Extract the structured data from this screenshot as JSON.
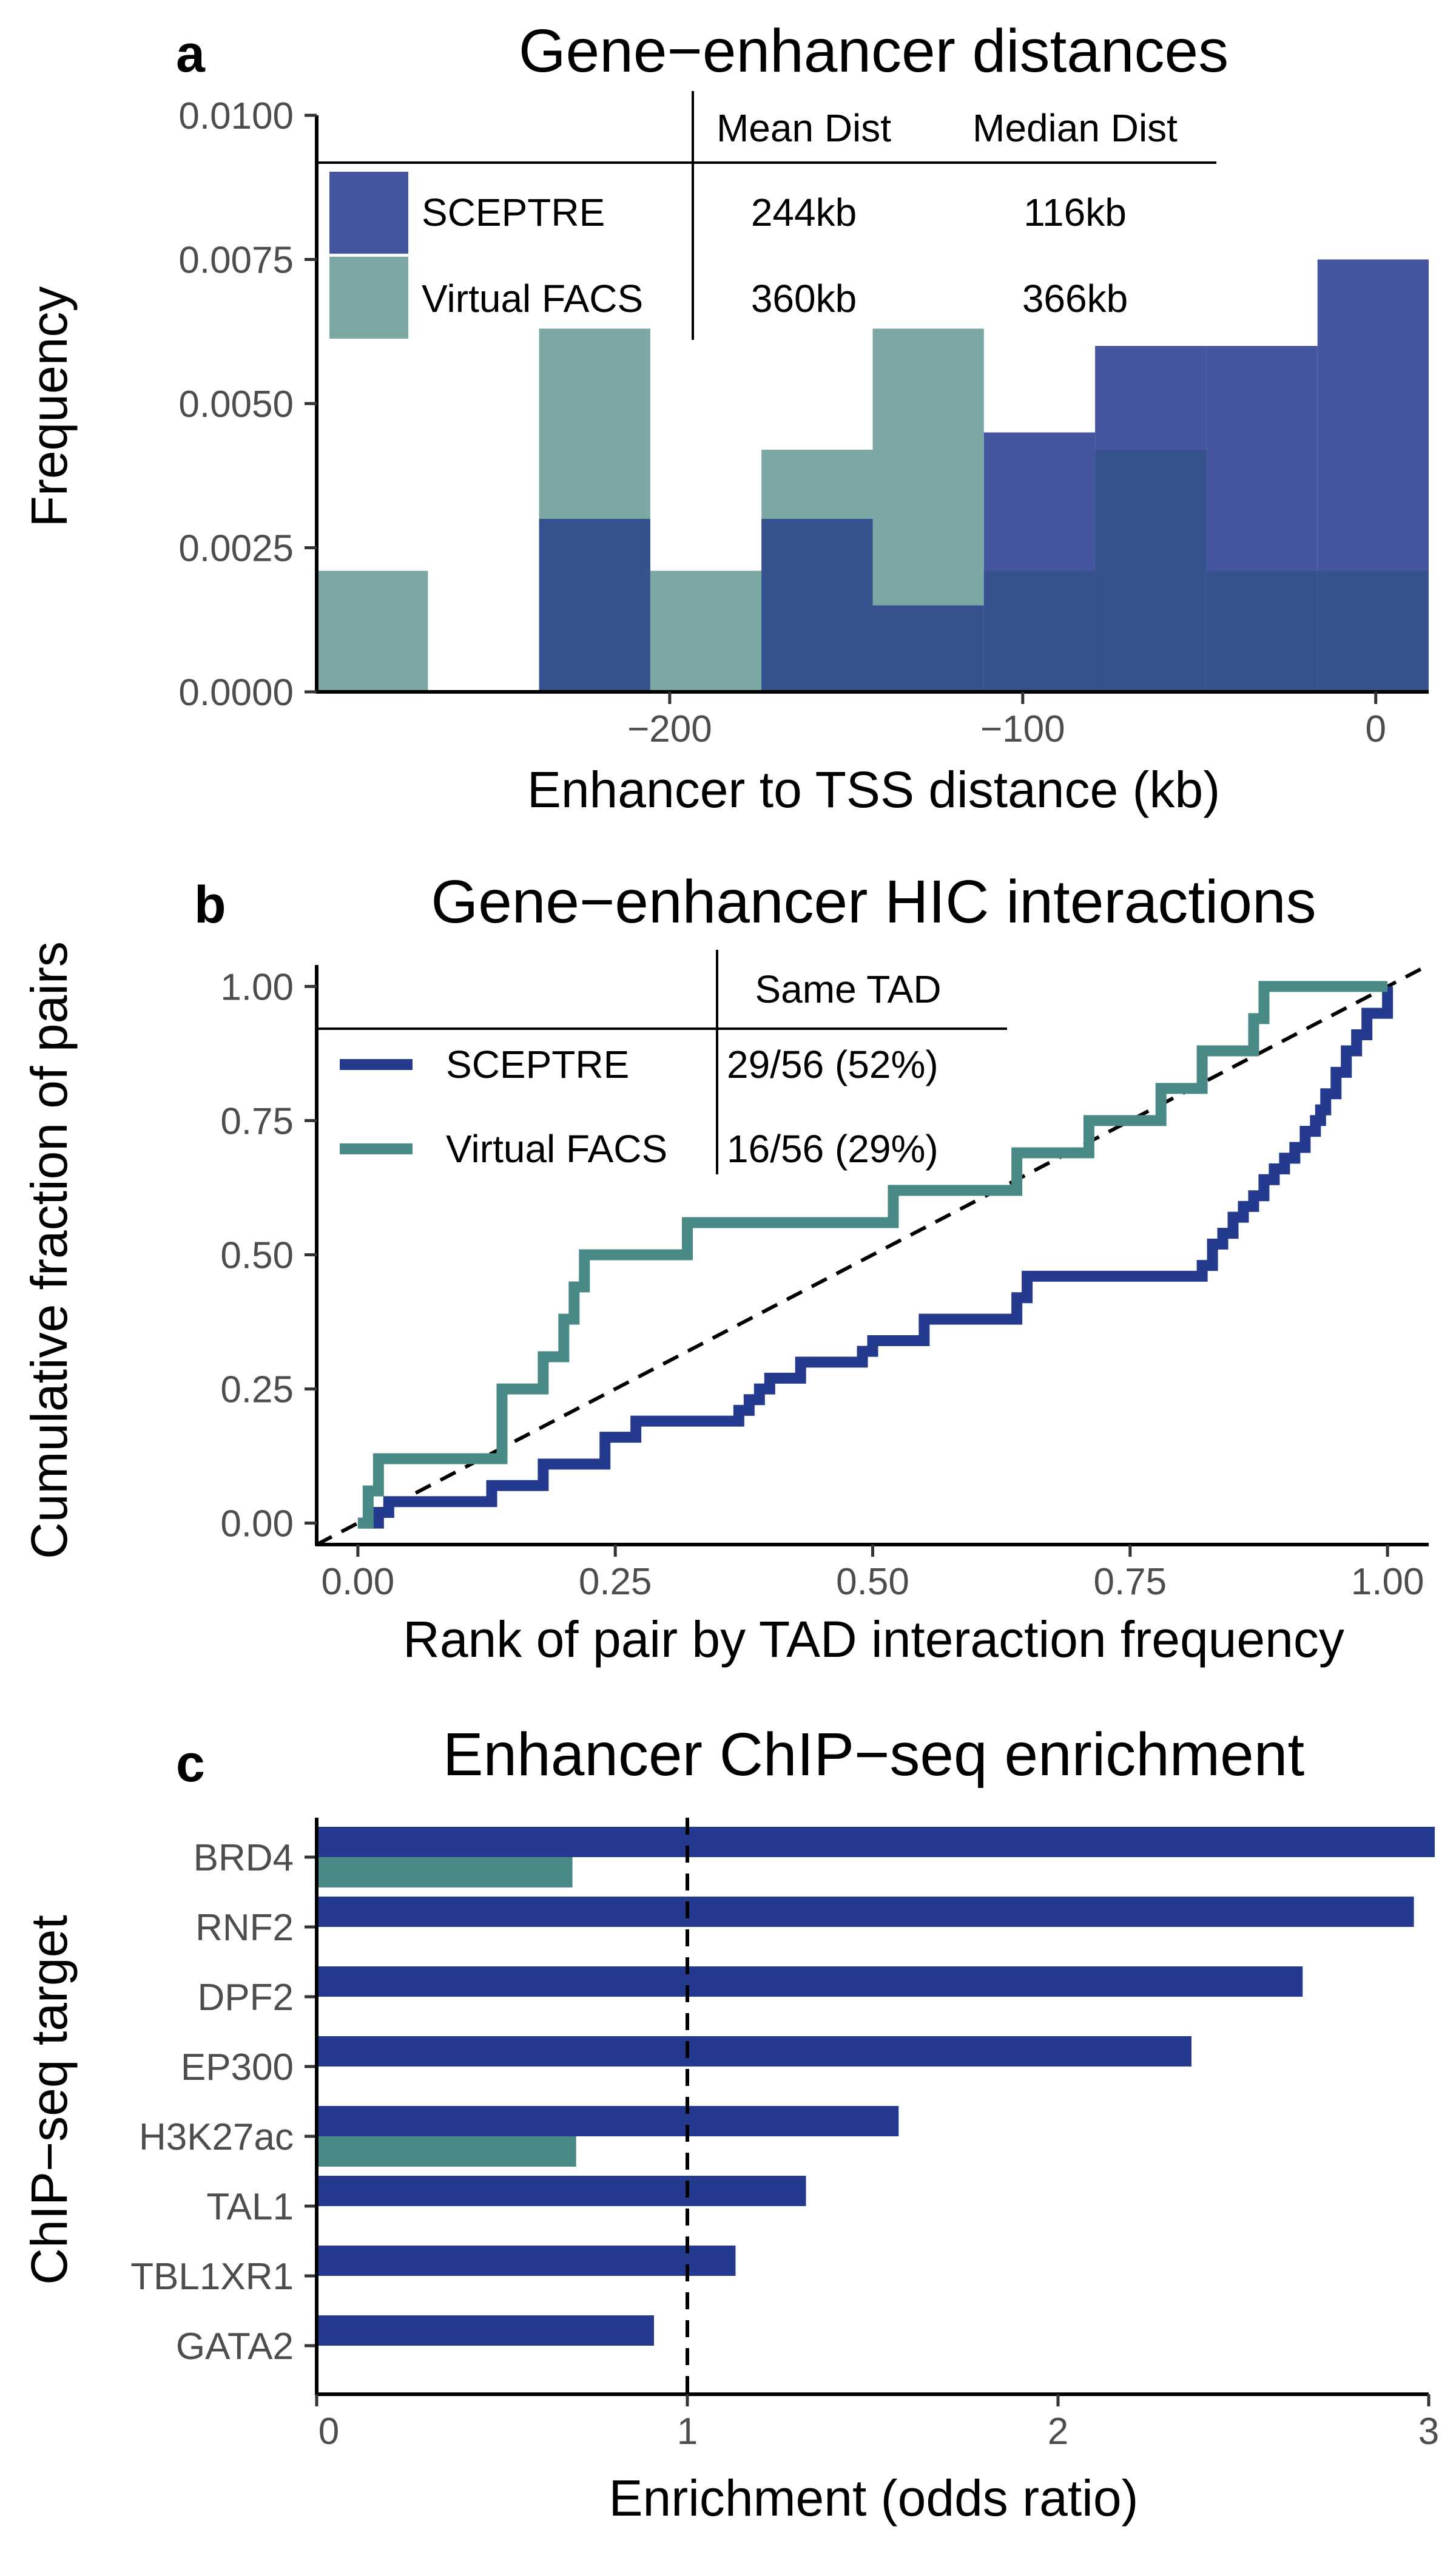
{
  "colors": {
    "sceptre": "#233A8E",
    "virtual_facs": "#4A8A86",
    "sceptre_hist_fill": "#4655A0",
    "virtual_facs_hist_fill": "#7BA8A4"
  },
  "chart_data": [
    {
      "type": "histogram",
      "panel_letter": "a",
      "title": "Gene−enhancer distances",
      "xlabel": "Enhancer to TSS distance (kb)",
      "ylabel": "Frequency",
      "xlim": [
        -300,
        15
      ],
      "ylim": [
        0,
        0.01
      ],
      "x_ticks": [
        -200,
        -100,
        0
      ],
      "x_tick_labels": [
        "−200",
        "−100",
        "0"
      ],
      "y_ticks": [
        0,
        0.0025,
        0.005,
        0.0075,
        0.01
      ],
      "y_tick_labels": [
        "0.0000",
        "0.0025",
        "0.0050",
        "0.0075",
        "0.0100"
      ],
      "bin_edges": [
        -300,
        -268.5,
        -237,
        -205.5,
        -174,
        -142.5,
        -111,
        -79.5,
        -48,
        -16.5,
        15
      ],
      "series": [
        {
          "name": "SCEPTRE",
          "values": [
            0,
            0,
            0.003,
            0,
            0.003,
            0.0015,
            0.0045,
            0.006,
            0.006,
            0.0075
          ]
        },
        {
          "name": "Virtual FACS",
          "values": [
            0.0021,
            0,
            0.0063,
            0.0021,
            0.0042,
            0.0063,
            0.0021,
            0.0042,
            0.0021,
            0.0021
          ]
        }
      ],
      "legend_table": {
        "headers": [
          "Mean Dist",
          "Median Dist"
        ],
        "rows": [
          {
            "name": "SCEPTRE",
            "mean": "244kb",
            "median": "116kb"
          },
          {
            "name": "Virtual FACS",
            "mean": "360kb",
            "median": "366kb"
          }
        ]
      }
    },
    {
      "type": "line",
      "panel_letter": "b",
      "title": "Gene−enhancer HIC interactions",
      "xlabel": "Rank of pair by TAD interaction frequency",
      "ylabel": "Cumulative fraction of pairs",
      "xlim": [
        -0.04,
        1.04
      ],
      "ylim": [
        -0.04,
        1.04
      ],
      "x_ticks": [
        0,
        0.25,
        0.5,
        0.75,
        1
      ],
      "x_tick_labels": [
        "0.00",
        "0.25",
        "0.50",
        "0.75",
        "1.00"
      ],
      "y_ticks": [
        0,
        0.25,
        0.5,
        0.75,
        1
      ],
      "y_tick_labels": [
        "0.00",
        "0.25",
        "0.50",
        "0.75",
        "1.00"
      ],
      "reference_line": "diagonal, dashed",
      "series": [
        {
          "name": "SCEPTRE",
          "x": [
            0,
            0.02,
            0.03,
            0.13,
            0.18,
            0.24,
            0.27,
            0.37,
            0.38,
            0.39,
            0.4,
            0.43,
            0.49,
            0.5,
            0.55,
            0.64,
            0.65,
            0.82,
            0.83,
            0.84,
            0.85,
            0.86,
            0.87,
            0.88,
            0.89,
            0.9,
            0.91,
            0.92,
            0.93,
            0.935,
            0.94,
            0.95,
            0.96,
            0.97,
            0.98,
            1.0
          ],
          "y": [
            0,
            0.02,
            0.04,
            0.07,
            0.11,
            0.16,
            0.19,
            0.21,
            0.23,
            0.25,
            0.27,
            0.3,
            0.32,
            0.34,
            0.38,
            0.42,
            0.46,
            0.48,
            0.52,
            0.54,
            0.57,
            0.59,
            0.61,
            0.64,
            0.66,
            0.68,
            0.7,
            0.73,
            0.75,
            0.77,
            0.8,
            0.84,
            0.88,
            0.91,
            0.95,
            1.0
          ],
          "step": true
        },
        {
          "name": "Virtual FACS",
          "x": [
            0,
            0.01,
            0.02,
            0.14,
            0.18,
            0.2,
            0.21,
            0.22,
            0.32,
            0.52,
            0.64,
            0.71,
            0.78,
            0.82,
            0.87,
            0.88,
            1.0
          ],
          "y": [
            0,
            0.06,
            0.12,
            0.25,
            0.31,
            0.38,
            0.44,
            0.5,
            0.56,
            0.62,
            0.69,
            0.75,
            0.81,
            0.88,
            0.94,
            1.0,
            1.0
          ],
          "step": true
        }
      ],
      "legend_table": {
        "headers": [
          "Same TAD"
        ],
        "rows": [
          {
            "name": "SCEPTRE",
            "value": "29/56 (52%)"
          },
          {
            "name": "Virtual FACS",
            "value": "16/56 (29%)"
          }
        ]
      }
    },
    {
      "type": "bar",
      "orientation": "horizontal",
      "panel_letter": "c",
      "title": "Enhancer ChIP−seq enrichment",
      "xlabel": "Enrichment (odds ratio)",
      "ylabel": "ChIP−seq target",
      "xlim": [
        0,
        3
      ],
      "x_ticks": [
        0,
        1,
        2,
        3
      ],
      "x_tick_labels": [
        "0",
        "1",
        "2",
        "3"
      ],
      "reference_line": "x = 1, dashed",
      "categories": [
        "BRD4",
        "RNF2",
        "DPF2",
        "EP300",
        "H3K27ac",
        "TAL1",
        "TBL1XR1",
        "GATA2"
      ],
      "series": [
        {
          "name": "SCEPTRE",
          "values": [
            3.02,
            2.96,
            2.66,
            2.36,
            1.57,
            1.32,
            1.13,
            0.91
          ]
        },
        {
          "name": "Virtual FACS",
          "values": [
            0.69,
            null,
            null,
            null,
            0.7,
            null,
            null,
            null
          ]
        }
      ]
    }
  ]
}
